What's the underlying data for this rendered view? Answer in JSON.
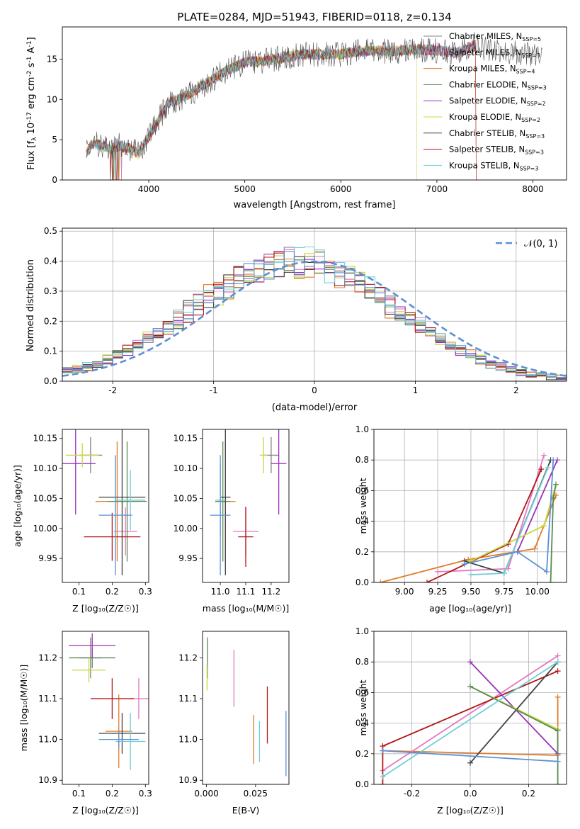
{
  "figure": {
    "title": "PLATE=0284, MJD=51943, FIBERID=0118, z=0.134"
  },
  "colors": {
    "CM": "#808080",
    "SM": "#e377c2",
    "KM": "#e07b28",
    "CE": "#5b8a55",
    "SE": "#9b30b8",
    "KE": "#c7d63a",
    "CS": "#404040",
    "SS": "#b01818",
    "KS": "#6fcfd8",
    "normal": "#5b8fd6"
  },
  "chart_data": [
    {
      "id": "spectrum",
      "type": "line",
      "xlabel": "wavelength [Angstrom, rest frame]",
      "ylabel": "Flux [f_λ 10^-17 erg cm^-2 s^-1 A^-1]",
      "xlim": [
        3100,
        8350
      ],
      "ylim": [
        0,
        19
      ],
      "xticks": [
        4000,
        5000,
        6000,
        7000,
        8000
      ],
      "yticks": [
        0,
        5,
        10,
        15
      ],
      "legend_position": "top-right",
      "series_names": [
        "Chabrier MILES, N_SSP=5",
        "Salpeter MILES, N_SSP=3",
        "Kroupa MILES, N_SSP=4",
        "Chabrier ELODIE, N_SSP=3",
        "Salpeter ELODIE, N_SSP=2",
        "Kroupa ELODIE, N_SSP=2",
        "Chabrier STELIB, N_SSP=3",
        "Salpeter STELIB, N_SSP=3",
        "Kroupa STELIB, N_SSP=3"
      ],
      "series_keys": [
        "CM",
        "SM",
        "KM",
        "CE",
        "SE",
        "KE",
        "CS",
        "SS",
        "KS"
      ],
      "continuum": [
        [
          3350,
          3.3
        ],
        [
          3400,
          4.4
        ],
        [
          3500,
          4.4
        ],
        [
          3600,
          3.8
        ],
        [
          3700,
          4.3
        ],
        [
          3800,
          3.9
        ],
        [
          3900,
          3.2
        ],
        [
          3950,
          4.5
        ],
        [
          4000,
          5.3
        ],
        [
          4200,
          9.5
        ],
        [
          4400,
          10.5
        ],
        [
          4600,
          12
        ],
        [
          4800,
          13.5
        ],
        [
          5000,
          14.6
        ],
        [
          5200,
          14.8
        ],
        [
          5400,
          15.2
        ],
        [
          5600,
          15.6
        ],
        [
          5800,
          15.6
        ],
        [
          6000,
          15.6
        ],
        [
          6200,
          16
        ],
        [
          6400,
          16
        ],
        [
          6600,
          16
        ],
        [
          6800,
          16.2
        ],
        [
          7000,
          16.1
        ],
        [
          7200,
          15.8
        ],
        [
          7400,
          16.8
        ],
        [
          7600,
          15.9
        ],
        [
          7800,
          15.9
        ],
        [
          8000,
          15.7
        ],
        [
          8100,
          15.6
        ]
      ]
    },
    {
      "id": "residuals",
      "type": "histogram",
      "xlabel": "(data-model)/error",
      "ylabel": "Normed distribution",
      "xlim": [
        -2.5,
        2.5
      ],
      "ylim": [
        0,
        0.51
      ],
      "xticks": [
        -2,
        -1,
        0,
        1,
        2
      ],
      "yticks": [
        0.0,
        0.1,
        0.2,
        0.3,
        0.4,
        0.5
      ],
      "grid": true,
      "legend_position": "top-right",
      "legend_label": "𝒩(0, 1)",
      "bin_width": 0.1
    },
    {
      "id": "age_vs_Z",
      "type": "errorbar",
      "xlabel": "Z [log10(Z/Z☉)]",
      "ylabel": "age [log10(age/yr)]",
      "xlim": [
        0.05,
        0.31
      ],
      "ylim": [
        9.91,
        10.165
      ],
      "xticks": [
        0.1,
        0.2,
        0.3
      ],
      "yticks": [
        9.95,
        10.0,
        10.05,
        10.1,
        10.15
      ],
      "points": [
        {
          "s": "CM",
          "x": 0.135,
          "xe": 0.035,
          "y": 10.122,
          "ye": 0.03
        },
        {
          "s": "SM",
          "x": 0.24,
          "xe": 0.035,
          "y": 9.995,
          "ye": 0.04
        },
        {
          "s": "KM",
          "x": 0.215,
          "xe": 0.065,
          "y": 10.045,
          "ye": 0.1
        },
        {
          "s": "CE",
          "x": 0.245,
          "xe": 0.06,
          "y": 10.045,
          "ye": 0.1
        },
        {
          "s": "SE",
          "x": 0.09,
          "xe": 0.06,
          "y": 10.108,
          "ye": 0.085
        },
        {
          "s": "KE",
          "x": 0.11,
          "xe": 0.05,
          "y": 10.122,
          "ye": 0.02
        },
        {
          "s": "CS",
          "x": 0.23,
          "xe": 0.07,
          "y": 10.052,
          "ye": 0.13
        },
        {
          "s": "SS",
          "x": 0.2,
          "xe": 0.085,
          "y": 9.986,
          "ye": 0.04
        },
        {
          "s": "KS",
          "x": 0.255,
          "xe": 0.045,
          "y": 10.047,
          "ye": 0.05
        },
        {
          "s": "normal",
          "x": 0.21,
          "xe": 0.05,
          "y": 10.022,
          "ye": 0.1
        }
      ]
    },
    {
      "id": "age_vs_mass",
      "type": "errorbar",
      "xlabel": "mass [log10(M/M☉)]",
      "ylabel": "",
      "xlim": [
        10.93,
        11.27
      ],
      "ylim": [
        9.91,
        10.165
      ],
      "xticks": [
        11.0,
        11.1,
        11.2
      ],
      "yticks": [
        9.95,
        10.0,
        10.05,
        10.1,
        10.15
      ],
      "points": [
        {
          "s": "CM",
          "x": 11.2,
          "xe": 0.03,
          "y": 10.122,
          "ye": 0.03
        },
        {
          "s": "SM",
          "x": 11.1,
          "xe": 0.05,
          "y": 9.995,
          "ye": 0.04
        },
        {
          "s": "KM",
          "x": 11.02,
          "xe": 0.04,
          "y": 10.045,
          "ye": 0.1
        },
        {
          "s": "CE",
          "x": 11.01,
          "xe": 0.03,
          "y": 10.045,
          "ye": 0.1
        },
        {
          "s": "SE",
          "x": 11.23,
          "xe": 0.03,
          "y": 10.108,
          "ye": 0.085
        },
        {
          "s": "KE",
          "x": 11.17,
          "xe": 0.015,
          "y": 10.122,
          "ye": 0.03
        },
        {
          "s": "CS",
          "x": 11.02,
          "xe": 0.02,
          "y": 10.052,
          "ye": 0.13
        },
        {
          "s": "SS",
          "x": 11.1,
          "xe": 0.03,
          "y": 9.986,
          "ye": 0.05
        },
        {
          "s": "KS",
          "x": 11.0,
          "xe": 0.02,
          "y": 10.047,
          "ye": 0.06
        },
        {
          "s": "normal",
          "x": 11.0,
          "xe": 0.04,
          "y": 10.022,
          "ye": 0.1
        }
      ]
    },
    {
      "id": "weight_vs_age",
      "type": "line",
      "xlabel": "age [log10(age/yr)]",
      "ylabel": "mass weight",
      "xlim": [
        8.77,
        10.22
      ],
      "ylim": [
        0,
        1
      ],
      "xticks": [
        9.0,
        9.25,
        9.5,
        9.75,
        10.0
      ],
      "yticks": [
        0.0,
        0.2,
        0.4,
        0.6,
        0.8,
        1.0
      ],
      "grid": true,
      "series": [
        {
          "s": "KM",
          "points": [
            [
              8.82,
              0.0
            ],
            [
              9.48,
              0.15
            ],
            [
              9.98,
              0.22
            ],
            [
              10.14,
              0.57
            ]
          ]
        },
        {
          "s": "SM",
          "points": [
            [
              9.25,
              0.07
            ],
            [
              9.78,
              0.09
            ],
            [
              10.05,
              0.83
            ]
          ]
        },
        {
          "s": "SS",
          "points": [
            [
              9.17,
              0.0
            ],
            [
              9.78,
              0.25
            ],
            [
              10.03,
              0.74
            ]
          ]
        },
        {
          "s": "SE",
          "points": [
            [
              9.85,
              0.2
            ],
            [
              10.15,
              0.8
            ]
          ]
        },
        {
          "s": "KE",
          "points": [
            [
              9.5,
              0.14
            ],
            [
              10.05,
              0.37
            ],
            [
              10.14,
              0.64
            ]
          ]
        },
        {
          "s": "CS",
          "points": [
            [
              9.45,
              0.14
            ],
            [
              9.75,
              0.06
            ],
            [
              10.1,
              0.8
            ]
          ]
        },
        {
          "s": "CE",
          "points": [
            [
              10.1,
              0.0
            ],
            [
              10.12,
              0.55
            ],
            [
              10.14,
              0.64
            ]
          ]
        },
        {
          "s": "KS",
          "points": [
            [
              9.5,
              0.05
            ],
            [
              9.75,
              0.06
            ],
            [
              10.08,
              0.75
            ]
          ]
        },
        {
          "s": "normal",
          "points": [
            [
              9.45,
              0.12
            ],
            [
              9.85,
              0.2
            ],
            [
              10.07,
              0.07
            ],
            [
              10.12,
              0.8
            ]
          ]
        }
      ]
    },
    {
      "id": "mass_vs_Z",
      "type": "errorbar",
      "xlabel": "Z [log10(Z/Z☉)]",
      "ylabel": "mass [log10(M/M☉)]",
      "xlim": [
        0.05,
        0.31
      ],
      "ylim": [
        10.89,
        11.265
      ],
      "xticks": [
        0.1,
        0.2,
        0.3
      ],
      "yticks": [
        10.9,
        11.0,
        11.1,
        11.2
      ],
      "points": [
        {
          "s": "CM",
          "x": 0.135,
          "xe": 0.035,
          "y": 11.2,
          "ye": 0.05
        },
        {
          "s": "SM",
          "x": 0.28,
          "xe": 0.03,
          "y": 11.1,
          "ye": 0.05
        },
        {
          "s": "KM",
          "x": 0.22,
          "xe": 0.04,
          "y": 11.02,
          "ye": 0.09
        },
        {
          "s": "CE",
          "x": 0.14,
          "xe": 0.07,
          "y": 11.2,
          "ye": 0.025
        },
        {
          "s": "SE",
          "x": 0.14,
          "xe": 0.07,
          "y": 11.23,
          "ye": 0.03
        },
        {
          "s": "KE",
          "x": 0.13,
          "xe": 0.05,
          "y": 11.17,
          "ye": 0.03
        },
        {
          "s": "CS",
          "x": 0.23,
          "xe": 0.07,
          "y": 11.015,
          "ye": 0.05
        },
        {
          "s": "SS",
          "x": 0.2,
          "xe": 0.065,
          "y": 11.1,
          "ye": 0.05
        },
        {
          "s": "KS",
          "x": 0.255,
          "xe": 0.045,
          "y": 10.995,
          "ye": 0.07
        },
        {
          "s": "normal",
          "x": 0.22,
          "xe": 0.06,
          "y": 11.0,
          "ye": 0.02
        }
      ]
    },
    {
      "id": "mass_vs_ebv",
      "type": "errorbar",
      "xlabel": "E(B-V)",
      "ylabel": "",
      "xlim": [
        -0.002,
        0.042
      ],
      "ylim": [
        10.89,
        11.265
      ],
      "xticks": [
        0.0,
        0.025
      ],
      "yticks": [
        10.9,
        11.0,
        11.1,
        11.2
      ],
      "points": [
        {
          "s": "CE",
          "x": 0.0005,
          "xe": 0,
          "y": 11.2,
          "ye": 0.05
        },
        {
          "s": "KE",
          "x": 0.0003,
          "xe": 0,
          "y": 11.15,
          "ye": 0.03
        },
        {
          "s": "SM",
          "x": 0.014,
          "xe": 0,
          "y": 11.15,
          "ye": 0.07
        },
        {
          "s": "KM",
          "x": 0.024,
          "xe": 0,
          "y": 11.0,
          "ye": 0.06
        },
        {
          "s": "KS",
          "x": 0.027,
          "xe": 0,
          "y": 10.995,
          "ye": 0.05
        },
        {
          "s": "SS",
          "x": 0.031,
          "xe": 0,
          "y": 11.06,
          "ye": 0.07
        },
        {
          "s": "normal",
          "x": 0.0405,
          "xe": 0,
          "y": 10.99,
          "ye": 0.08
        }
      ]
    },
    {
      "id": "weight_vs_Z",
      "type": "line",
      "xlabel": "Z [log10(Z/Z☉)]",
      "ylabel": "mass weight",
      "xlim": [
        -0.33,
        0.33
      ],
      "ylim": [
        0,
        1
      ],
      "xticks": [
        -0.2,
        0.0,
        0.2
      ],
      "yticks": [
        0.0,
        0.2,
        0.4,
        0.6,
        0.8,
        1.0
      ],
      "grid": true,
      "series": [
        {
          "s": "KM",
          "points": [
            [
              -0.3,
              0.22
            ],
            [
              0.3,
              0.19
            ],
            [
              0.3,
              0.57
            ]
          ]
        },
        {
          "s": "SM",
          "points": [
            [
              -0.3,
              0.09
            ],
            [
              0.3,
              0.84
            ]
          ]
        },
        {
          "s": "SS",
          "points": [
            [
              -0.3,
              0.0
            ],
            [
              -0.3,
              0.25
            ],
            [
              0.3,
              0.74
            ]
          ]
        },
        {
          "s": "SE",
          "points": [
            [
              0.0,
              0.8
            ],
            [
              0.3,
              0.2
            ]
          ]
        },
        {
          "s": "KE",
          "points": [
            [
              0.0,
              0.64
            ],
            [
              0.3,
              0.36
            ]
          ]
        },
        {
          "s": "CS",
          "points": [
            [
              0.0,
              0.14
            ],
            [
              0.3,
              0.8
            ]
          ]
        },
        {
          "s": "CE",
          "points": [
            [
              0.0,
              0.64
            ],
            [
              0.3,
              0.35
            ],
            [
              0.3,
              0.0
            ]
          ]
        },
        {
          "s": "KS",
          "points": [
            [
              -0.3,
              0.05
            ],
            [
              0.3,
              0.8
            ]
          ]
        },
        {
          "s": "normal",
          "points": [
            [
              -0.3,
              0.22
            ],
            [
              0.3,
              0.15
            ]
          ]
        }
      ]
    }
  ]
}
